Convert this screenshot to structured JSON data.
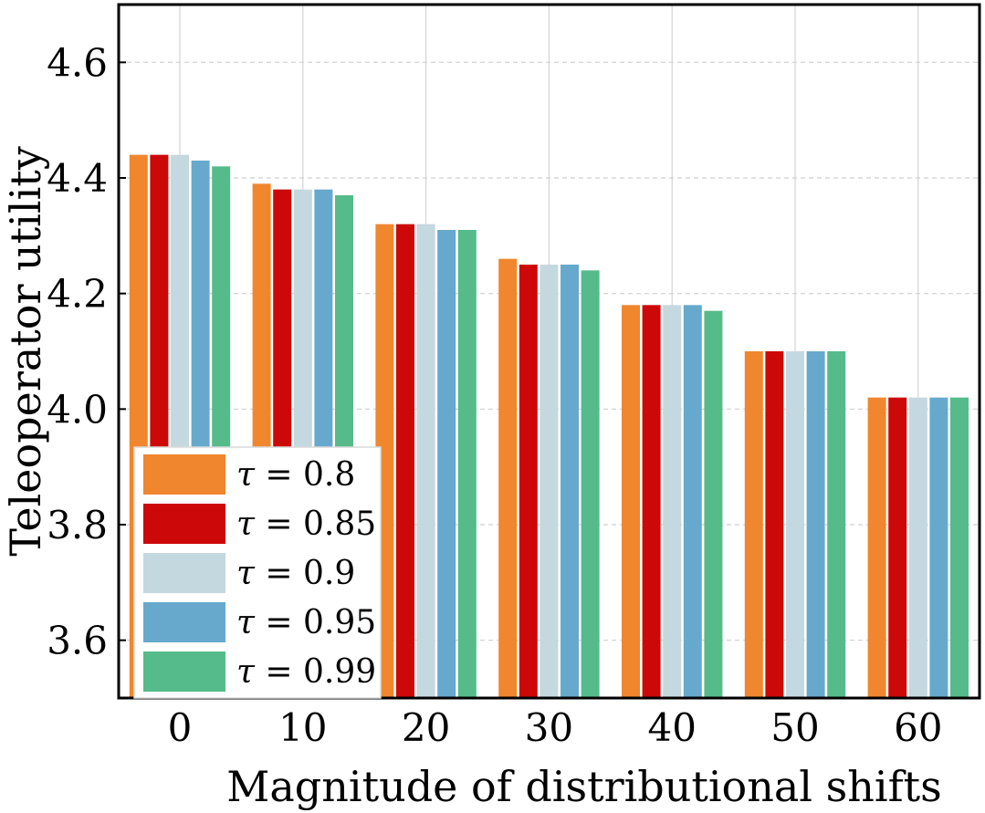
{
  "chart_data": {
    "type": "bar",
    "title": "",
    "xlabel": "Magnitude of distributional shifts",
    "ylabel": "Teleoperator utility",
    "categories": [
      "0",
      "10",
      "20",
      "30",
      "40",
      "50",
      "60"
    ],
    "ylim": [
      3.5,
      4.7
    ],
    "yticks": [
      "3.6",
      "3.8",
      "4.0",
      "4.2",
      "4.4",
      "4.6"
    ],
    "ytick_values": [
      3.6,
      3.8,
      4.0,
      4.2,
      4.4,
      4.6
    ],
    "grid": true,
    "legend_position": "lower-left",
    "series": [
      {
        "name": "τ = 0.8",
        "tau": "τ",
        "eq": " = 0.8",
        "color": "#f0862e",
        "values": [
          4.44,
          4.39,
          4.32,
          4.26,
          4.18,
          4.1,
          4.02
        ]
      },
      {
        "name": "τ = 0.85",
        "tau": "τ",
        "eq": " = 0.85",
        "color": "#cc0808",
        "values": [
          4.44,
          4.38,
          4.32,
          4.25,
          4.18,
          4.1,
          4.02
        ]
      },
      {
        "name": "τ = 0.9",
        "tau": "τ",
        "eq": " = 0.9",
        "color": "#c4d8df",
        "values": [
          4.44,
          4.38,
          4.32,
          4.25,
          4.18,
          4.1,
          4.02
        ]
      },
      {
        "name": "τ = 0.95",
        "tau": "τ",
        "eq": " = 0.95",
        "color": "#66a9cc",
        "values": [
          4.43,
          4.38,
          4.31,
          4.25,
          4.18,
          4.1,
          4.02
        ]
      },
      {
        "name": "τ = 0.99",
        "tau": "τ",
        "eq": " = 0.99",
        "color": "#55bb8a",
        "values": [
          4.42,
          4.37,
          4.31,
          4.24,
          4.17,
          4.1,
          4.02
        ]
      }
    ]
  }
}
